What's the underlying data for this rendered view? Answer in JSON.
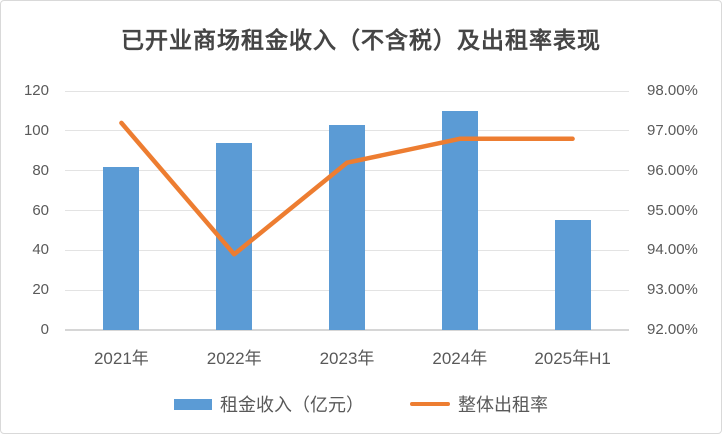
{
  "window": {
    "background": "#ffffff",
    "border_color": "#d9d9d9"
  },
  "chart_data": {
    "type": "bar",
    "subtype": "combo-bar-line",
    "title": "已开业商场租金收入（不含税）及出租率表现",
    "categories": [
      "2021年",
      "2022年",
      "2023年",
      "2024年",
      "2025年H1"
    ],
    "series": [
      {
        "name": "租金收入（亿元）",
        "type": "bar",
        "axis": "left",
        "color": "#5B9BD5",
        "values": [
          82,
          94,
          103,
          110,
          55
        ]
      },
      {
        "name": "整体出租率",
        "type": "line",
        "axis": "right",
        "color": "#ED7D31",
        "values": [
          97.2,
          93.9,
          96.2,
          96.8,
          96.8
        ],
        "unit": "%"
      }
    ],
    "left_axis": {
      "min": 0,
      "max": 120,
      "step": 20,
      "tick_labels": [
        "120",
        "100",
        "80",
        "60",
        "40",
        "20",
        "0"
      ]
    },
    "right_axis": {
      "min": 92,
      "max": 98,
      "step": 1,
      "tick_labels": [
        "98.00%",
        "97.00%",
        "96.00%",
        "95.00%",
        "94.00%",
        "93.00%",
        "92.00%"
      ]
    },
    "grid": true,
    "gridline_color": "#e3e3e3",
    "legend_position": "bottom"
  },
  "colors": {
    "bar_blue": "#5B9BD5",
    "line_orange": "#ED7D31",
    "axis_text": "#595959",
    "title_text": "#454545"
  }
}
